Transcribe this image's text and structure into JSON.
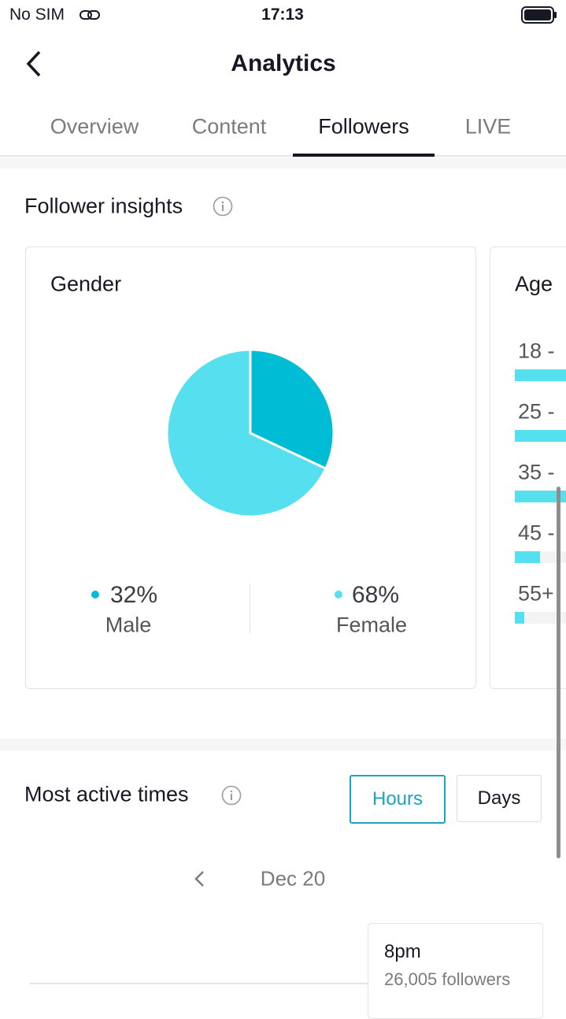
{
  "status_bar": {
    "carrier": "No SIM",
    "time": "17:13"
  },
  "header": {
    "title": "Analytics"
  },
  "tabs": [
    "Overview",
    "Content",
    "Followers",
    "LIVE"
  ],
  "insights": {
    "title": "Follower insights"
  },
  "gender": {
    "type": "pie",
    "title": "Gender",
    "categories": [
      "Male",
      "Female"
    ],
    "values": [
      32,
      68
    ],
    "value_labels": [
      "32%",
      "68%"
    ],
    "colors": [
      "#00bcd4",
      "#55dfef"
    ]
  },
  "age": {
    "title": "Age",
    "labels": [
      "18 -",
      "25 -",
      "35 -",
      "45 -",
      "55+"
    ]
  },
  "active_times": {
    "title": "Most active times",
    "buttons": [
      "Hours",
      "Days"
    ],
    "date": "Dec 20",
    "tooltip": {
      "time": "8pm",
      "followers": "26,005 followers"
    }
  }
}
